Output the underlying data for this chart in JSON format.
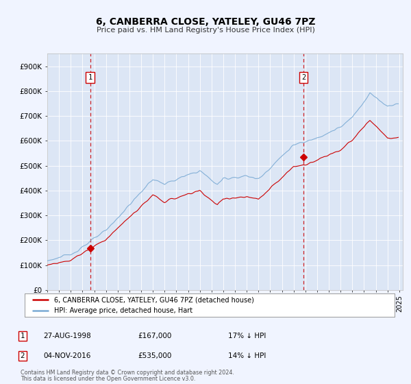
{
  "title": "6, CANBERRA CLOSE, YATELEY, GU46 7PZ",
  "subtitle": "Price paid vs. HM Land Registry's House Price Index (HPI)",
  "background_color": "#f0f4ff",
  "plot_bg_color": "#dce6f5",
  "red_line_label": "6, CANBERRA CLOSE, YATELEY, GU46 7PZ (detached house)",
  "blue_line_label": "HPI: Average price, detached house, Hart",
  "annotation1_label": "1",
  "annotation1_date": "27-AUG-1998",
  "annotation1_price": "£167,000",
  "annotation1_hpi": "17% ↓ HPI",
  "annotation1_year": 1998.65,
  "annotation1_value": 167000,
  "annotation2_label": "2",
  "annotation2_date": "04-NOV-2016",
  "annotation2_price": "£535,000",
  "annotation2_hpi": "14% ↓ HPI",
  "annotation2_year": 2016.84,
  "annotation2_value": 535000,
  "ylabel_ticks": [
    0,
    100000,
    200000,
    300000,
    400000,
    500000,
    600000,
    700000,
    800000,
    900000
  ],
  "ylabel_labels": [
    "£0",
    "£100K",
    "£200K",
    "£300K",
    "£400K",
    "£500K",
    "£600K",
    "£700K",
    "£800K",
    "£900K"
  ],
  "ylim": [
    0,
    950000
  ],
  "xlim_start": 1995.0,
  "xlim_end": 2025.3,
  "footer_line1": "Contains HM Land Registry data © Crown copyright and database right 2024.",
  "footer_line2": "This data is licensed under the Open Government Licence v3.0.",
  "red_color": "#cc0000",
  "blue_color": "#7aaad4",
  "vline_color": "#cc0000",
  "grid_color": "#ffffff",
  "marker_color": "#cc0000"
}
